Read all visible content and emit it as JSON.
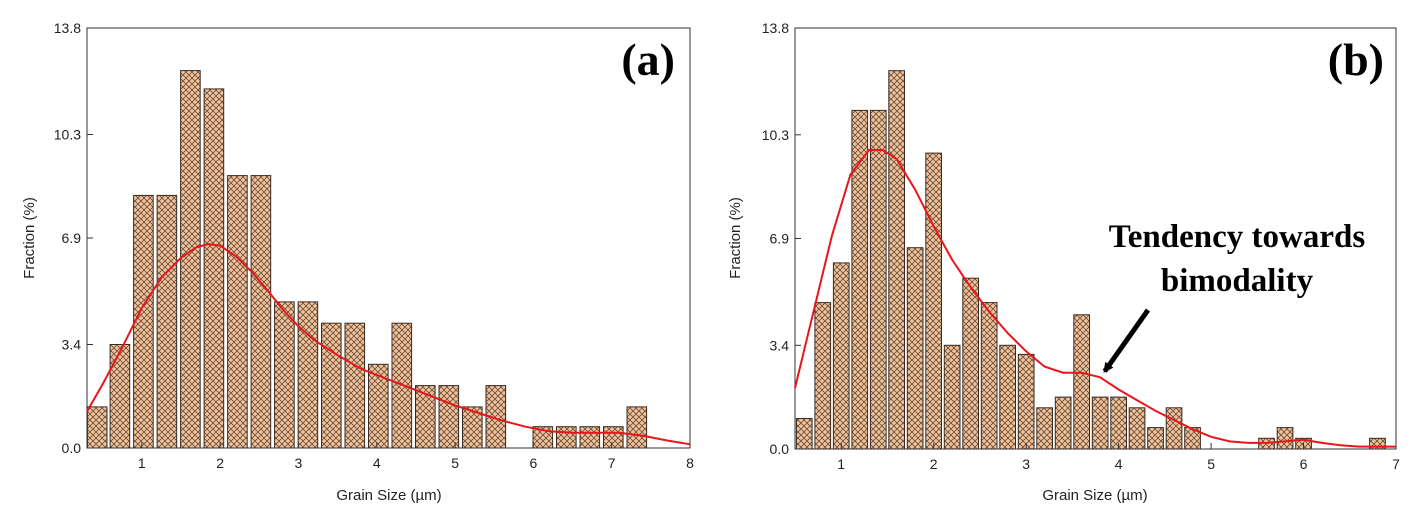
{
  "chart_data": [
    {
      "type": "bar",
      "panel_label": "(a)",
      "xlabel": "Grain Size (µm)",
      "ylabel": "Fraction (%)",
      "xlim": [
        0.3,
        8
      ],
      "ylim": [
        0,
        13.8
      ],
      "xticks": [
        1,
        2,
        3,
        4,
        5,
        6,
        7,
        8
      ],
      "yticks": [
        0.0,
        3.4,
        6.9,
        10.3,
        13.8
      ],
      "ytick_labels": [
        "0.0",
        "3.4",
        "6.9",
        "10.3",
        "13.8"
      ],
      "bar_width": 0.25,
      "bin_centers": [
        0.43,
        0.72,
        1.02,
        1.32,
        1.62,
        1.92,
        2.22,
        2.52,
        2.82,
        3.12,
        3.42,
        3.72,
        4.02,
        4.32,
        4.62,
        4.92,
        5.22,
        5.52,
        6.12,
        6.42,
        6.72,
        7.02,
        7.32
      ],
      "values": [
        1.35,
        3.4,
        8.3,
        8.3,
        12.4,
        11.8,
        8.95,
        8.95,
        4.8,
        4.8,
        4.1,
        4.1,
        2.75,
        4.1,
        2.05,
        2.05,
        1.35,
        2.05,
        0.7,
        0.7,
        0.7,
        0.7,
        1.35
      ],
      "fit_curve": {
        "x": [
          0.3,
          0.5,
          0.75,
          1.0,
          1.25,
          1.5,
          1.7,
          1.85,
          2.0,
          2.2,
          2.4,
          2.6,
          2.8,
          3.0,
          3.2,
          3.5,
          3.8,
          4.1,
          4.4,
          4.7,
          5.0,
          5.3,
          5.6,
          5.9,
          6.2,
          6.5,
          6.8,
          7.1,
          7.4,
          7.7,
          8.0
        ],
        "y": [
          1.2,
          2.1,
          3.3,
          4.6,
          5.6,
          6.25,
          6.6,
          6.7,
          6.65,
          6.3,
          5.8,
          5.2,
          4.55,
          4.0,
          3.55,
          3.05,
          2.6,
          2.3,
          2.0,
          1.7,
          1.4,
          1.15,
          0.9,
          0.7,
          0.55,
          0.5,
          0.5,
          0.5,
          0.4,
          0.25,
          0.12
        ]
      }
    },
    {
      "type": "bar",
      "panel_label": "(b)",
      "xlabel": "Grain Size (µm)",
      "ylabel": "Fraction (%)",
      "xlim": [
        0.5,
        7
      ],
      "ylim": [
        0,
        13.8
      ],
      "xticks": [
        1,
        2,
        3,
        4,
        5,
        6,
        7
      ],
      "yticks": [
        0.0,
        3.4,
        6.9,
        10.3,
        13.8
      ],
      "ytick_labels": [
        "0.0",
        "3.4",
        "6.9",
        "10.3",
        "13.8"
      ],
      "bar_width": 0.17,
      "bin_centers": [
        0.6,
        0.8,
        1.0,
        1.2,
        1.4,
        1.6,
        1.8,
        2.0,
        2.2,
        2.4,
        2.6,
        2.8,
        3.0,
        3.2,
        3.4,
        3.6,
        3.8,
        4.0,
        4.2,
        4.4,
        4.6,
        4.8,
        5.6,
        5.8,
        6.0,
        6.8
      ],
      "values": [
        1.0,
        4.8,
        6.1,
        11.1,
        11.1,
        12.4,
        6.6,
        9.7,
        3.4,
        5.6,
        4.8,
        3.4,
        3.1,
        1.35,
        1.7,
        4.4,
        1.7,
        1.7,
        1.35,
        0.7,
        1.35,
        0.7,
        0.35,
        0.7,
        0.35,
        0.35
      ],
      "fit_curve": {
        "x": [
          0.5,
          0.7,
          0.9,
          1.1,
          1.3,
          1.45,
          1.6,
          1.8,
          2.0,
          2.2,
          2.4,
          2.6,
          2.8,
          3.0,
          3.2,
          3.4,
          3.6,
          3.8,
          4.0,
          4.2,
          4.4,
          4.6,
          4.8,
          5.0,
          5.2,
          5.4,
          5.6,
          5.8,
          6.0,
          6.2,
          6.4,
          6.6,
          6.8,
          7.0
        ],
        "y": [
          2.0,
          4.5,
          7.0,
          9.0,
          9.8,
          9.8,
          9.5,
          8.5,
          7.3,
          6.2,
          5.3,
          4.5,
          3.8,
          3.2,
          2.7,
          2.5,
          2.5,
          2.35,
          1.95,
          1.6,
          1.25,
          0.95,
          0.65,
          0.4,
          0.25,
          0.2,
          0.2,
          0.25,
          0.3,
          0.2,
          0.12,
          0.08,
          0.08,
          0.08
        ]
      },
      "annotation": {
        "line1": "Tendency towards",
        "line2": "bimodality",
        "points_to": [
          3.85,
          2.35
        ]
      }
    }
  ]
}
